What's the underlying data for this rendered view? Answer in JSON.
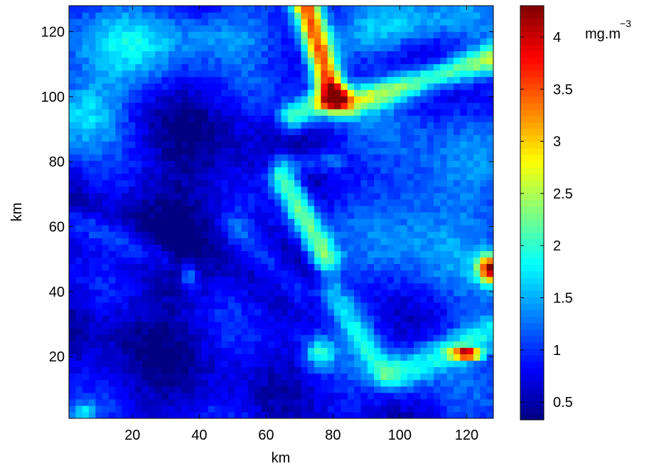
{
  "chart_data": {
    "type": "heatmap",
    "title": "",
    "xlabel": "km",
    "ylabel": "km",
    "xlim": [
      1,
      128
    ],
    "ylim": [
      1,
      128
    ],
    "x_ticks": [
      20,
      40,
      60,
      80,
      100,
      120
    ],
    "y_ticks": [
      20,
      40,
      60,
      80,
      100,
      120
    ],
    "grid": false,
    "colormap": "jet",
    "colorbar": {
      "label": "mg.m",
      "label_exponent": "−3",
      "range": [
        0.33,
        4.3
      ],
      "ticks": [
        0.5,
        1,
        1.5,
        2,
        2.5,
        3,
        3.5,
        4
      ],
      "tick_labels": [
        "0.5",
        "1",
        "1.5",
        "2",
        "2.5",
        "3",
        "3.5",
        "4"
      ]
    },
    "field_description": "Surface chlorophyll concentration field on a 128x128 km grid: dominant low values (~0.5-1.2) in the centre-left with filaments of higher values (~1.5-2.5) and local maxima near 4 at the top (x~72, y~125) and right edge (x~127, y~47; x~120, y~21)."
  }
}
